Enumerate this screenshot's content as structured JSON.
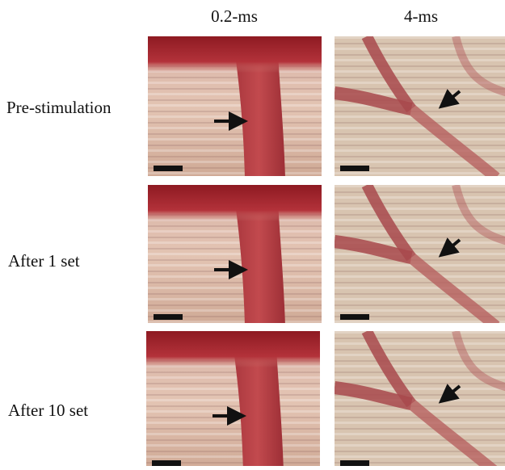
{
  "columns": [
    "0.2-ms",
    "4-ms"
  ],
  "rows": [
    "Pre-stimulation",
    "After 1 set",
    "After 10 set"
  ]
}
